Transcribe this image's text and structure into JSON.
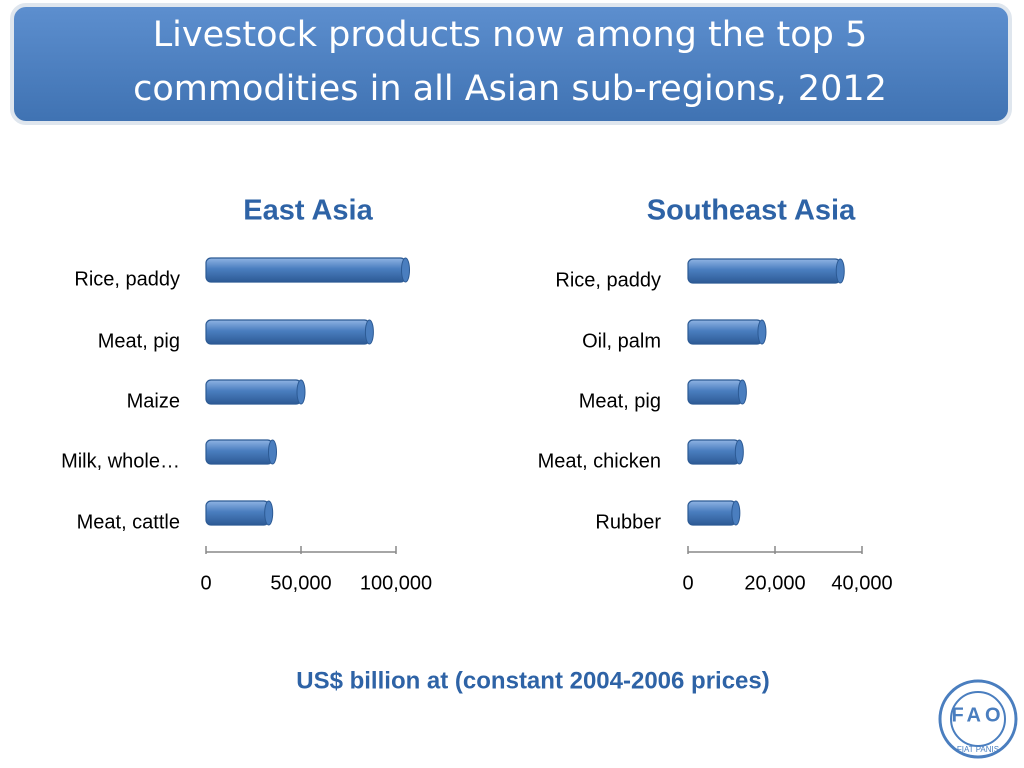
{
  "title": "Livestock products now among the top 5 commodities in all Asian sub-regions, 2012",
  "note": "US$ billion at (constant 2004-2006 prices)",
  "logo": {
    "letters": "FAO",
    "motto": "FIAT PANIS"
  },
  "chart_data": [
    {
      "type": "hbar",
      "title": "East Asia",
      "categories": [
        "Rice, paddy",
        "Meat, pig",
        "Maize",
        "Milk, whole…",
        "Meat, cattle"
      ],
      "values": [
        105000,
        86000,
        50000,
        35000,
        33000
      ],
      "color": "#4a7ebf",
      "xlim": [
        0,
        100000
      ],
      "xticks": [
        0,
        {
          "value": 50000,
          "label": "50,000"
        },
        {
          "value": 100000,
          "label": "100,000"
        }
      ]
    },
    {
      "type": "hbar",
      "title": "Southeast Asia",
      "categories": [
        "Rice, paddy",
        "Oil, palm",
        "Meat, pig",
        "Meat, chicken",
        "Rubber"
      ],
      "values": [
        35000,
        17000,
        12500,
        11800,
        11000
      ],
      "color": "#4a7ebf",
      "xlim": [
        0,
        40000
      ],
      "xticks": [
        0,
        {
          "value": 20000,
          "label": "20,000"
        },
        {
          "value": 40000,
          "label": "40,000"
        }
      ]
    }
  ]
}
